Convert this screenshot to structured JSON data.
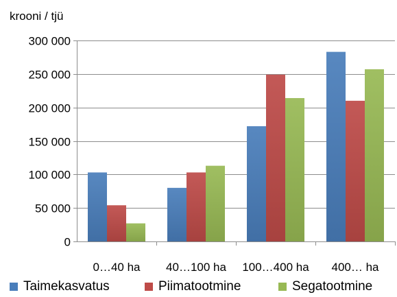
{
  "chart_data": {
    "type": "bar",
    "ylabel": "krooni / tjü",
    "categories": [
      "0…40 ha",
      "40…100 ha",
      "100…400 ha",
      "400… ha"
    ],
    "series": [
      {
        "name": "Taimekasvatus",
        "values": [
          103000,
          80000,
          172000,
          283000
        ],
        "color": "#4a7ebb"
      },
      {
        "name": "Piimatootmine",
        "values": [
          54000,
          103000,
          249000,
          210000
        ],
        "color": "#be4b48"
      },
      {
        "name": "Segatootmine",
        "values": [
          27000,
          113000,
          214000,
          257000
        ],
        "color": "#98b954"
      }
    ],
    "ylim": [
      0,
      300000
    ],
    "y_ticks": [
      0,
      50000,
      100000,
      150000,
      200000,
      250000,
      300000
    ],
    "y_tick_labels": [
      "0",
      "50 000",
      "100 000",
      "150 000",
      "200 000",
      "250 000",
      "300 000"
    ],
    "grid": "horizontal",
    "legend": "bottom"
  }
}
